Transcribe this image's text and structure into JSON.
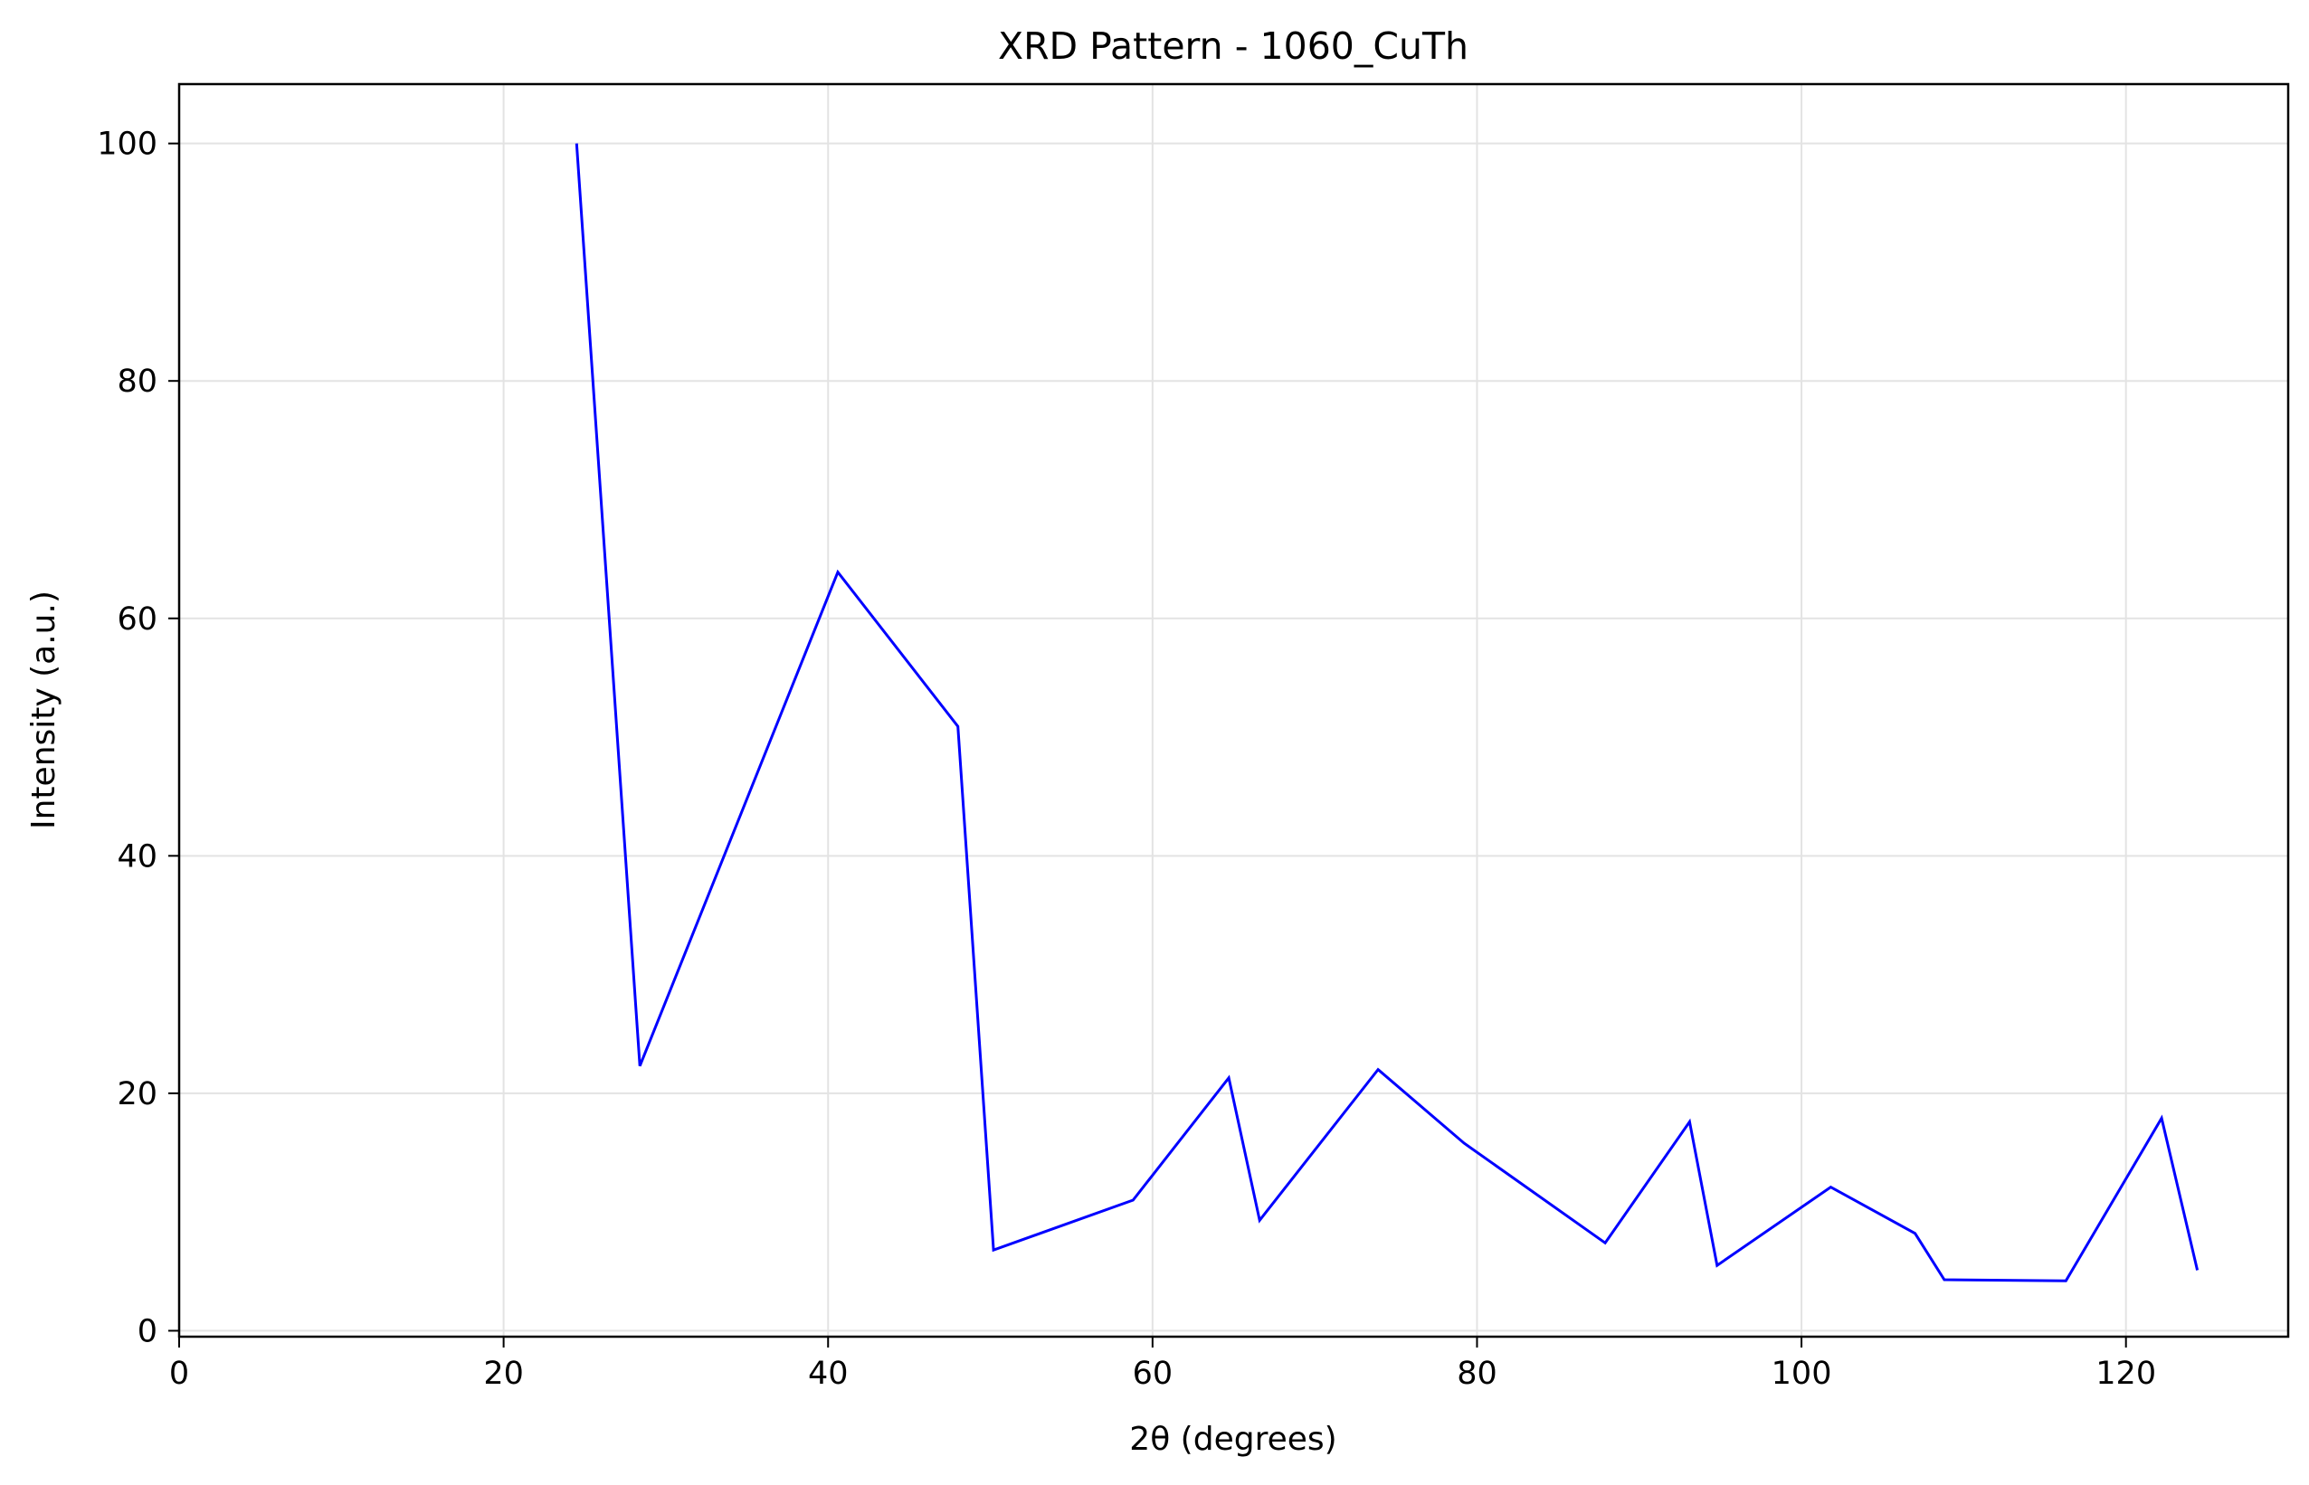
{
  "chart_data": {
    "type": "line",
    "title": "XRD Pattern - 1060_CuTh",
    "xlabel": "2θ (degrees)",
    "ylabel": "Intensity (a.u.)",
    "xlim": [
      0,
      130
    ],
    "ylim": [
      -0.5,
      105
    ],
    "xticks": [
      0,
      20,
      40,
      60,
      80,
      100,
      120
    ],
    "yticks": [
      0,
      20,
      40,
      60,
      80,
      100
    ],
    "grid": true,
    "series": [
      {
        "color": "#0000ff",
        "x": [
          24.5,
          28.4,
          40.6,
          48.0,
          50.2,
          58.8,
          64.7,
          66.6,
          73.9,
          79.2,
          87.9,
          93.1,
          94.8,
          101.8,
          107.0,
          108.8,
          116.3,
          122.2,
          124.4
        ],
        "y": [
          100.0,
          22.3,
          63.9,
          50.9,
          6.8,
          11.0,
          21.3,
          9.3,
          22.0,
          15.8,
          7.4,
          17.6,
          5.5,
          12.1,
          8.2,
          4.3,
          4.2,
          17.9,
          5.1
        ]
      }
    ]
  }
}
